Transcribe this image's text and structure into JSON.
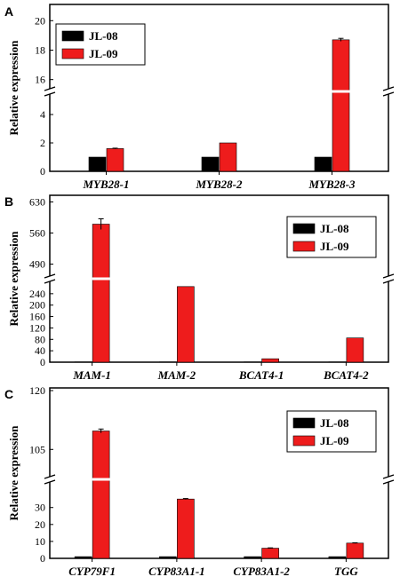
{
  "chart_data": [
    {
      "type": "bar",
      "panel": "A",
      "ylabel": "Relative expression",
      "categories": [
        "MYB28-1",
        "MYB28-2",
        "MYB28-3"
      ],
      "series": [
        {
          "name": "JL-08",
          "color": "#000000",
          "values": [
            1,
            1,
            1
          ],
          "errors": [
            0,
            0,
            0
          ]
        },
        {
          "name": "JL-09",
          "color": "#ee1c1c",
          "values": [
            1.6,
            2.0,
            18.7
          ],
          "errors": [
            0.03,
            0,
            0.1
          ]
        }
      ],
      "axis_break": true,
      "ylim_lower": [
        0,
        5
      ],
      "ylim_upper": [
        15.8,
        20.8
      ],
      "yticks_lower": [
        "0",
        "2",
        "4"
      ],
      "yticks_upper": [
        "16",
        "18",
        "20"
      ],
      "legend": "top-left"
    },
    {
      "type": "bar",
      "panel": "B",
      "ylabel": "Relative expression",
      "categories": [
        "MAM-1",
        "MAM-2",
        "BCAT4-1",
        "BCAT4-2"
      ],
      "series": [
        {
          "name": "JL-08",
          "color": "#000000",
          "values": [
            1,
            1,
            1,
            1
          ],
          "errors": [
            0,
            0,
            0,
            0
          ]
        },
        {
          "name": "JL-09",
          "color": "#ee1c1c",
          "values": [
            580,
            265,
            12,
            85
          ],
          "errors": [
            12,
            0,
            0,
            0
          ]
        }
      ],
      "axis_break": true,
      "ylim_lower": [
        0,
        280
      ],
      "ylim_upper": [
        465,
        635
      ],
      "yticks_lower": [
        "0",
        "40",
        "80",
        "120",
        "160",
        "200",
        "240"
      ],
      "yticks_upper": [
        "490",
        "560",
        "630"
      ],
      "legend": "top-right"
    },
    {
      "type": "bar",
      "panel": "C",
      "ylabel": "Relative expression",
      "categories": [
        "CYP79F1",
        "CYP83A1-1",
        "CYP83A1-2",
        "TGG"
      ],
      "series": [
        {
          "name": "JL-08",
          "color": "#000000",
          "values": [
            1,
            1,
            1,
            1
          ],
          "errors": [
            0,
            0,
            0,
            0
          ]
        },
        {
          "name": "JL-09",
          "color": "#ee1c1c",
          "values": [
            109.7,
            35,
            6,
            9
          ],
          "errors": [
            0.5,
            0.3,
            0.2,
            0.2
          ]
        }
      ],
      "axis_break": true,
      "ylim_lower": [
        0,
        44
      ],
      "ylim_upper": [
        98.5,
        120
      ],
      "yticks_lower": [
        "0",
        "10",
        "20",
        "30"
      ],
      "yticks_upper": [
        "105",
        "120"
      ],
      "legend": "top-right"
    }
  ]
}
